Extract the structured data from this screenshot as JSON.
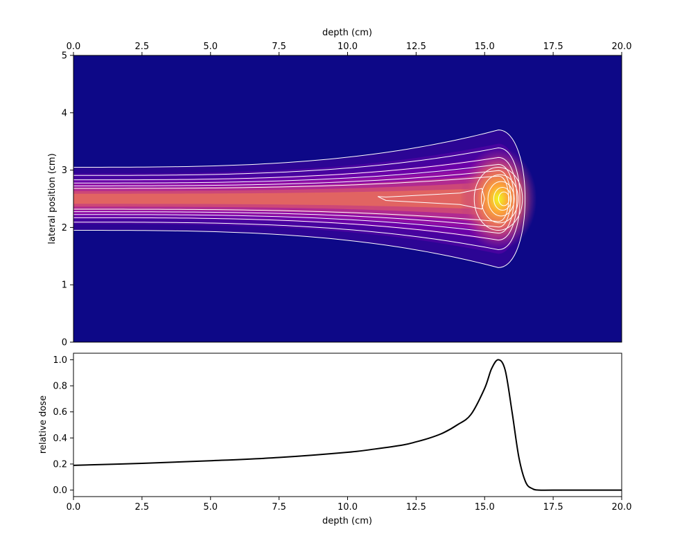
{
  "chart_data": [
    {
      "type": "heatmap",
      "subtype": "filled-contour",
      "colormap": "plasma",
      "contour_line_color": "#ffffff",
      "xlabel": "depth (cm)",
      "x_axis_position": "top",
      "ylabel": "lateral position (cm)",
      "xlim": [
        0,
        20
      ],
      "ylim": [
        0,
        5
      ],
      "xticks": [
        "0.0",
        "2.5",
        "5.0",
        "7.5",
        "10.0",
        "12.5",
        "15.0",
        "17.5",
        "20.0"
      ],
      "yticks": [
        "0",
        "1",
        "2",
        "3",
        "4",
        "5"
      ],
      "beam_center_y": 2.5,
      "peak_depth": 15.5,
      "peak_lateral_extent": [
        1.3,
        3.7
      ],
      "entrance_lateral_extent": [
        1.95,
        3.05
      ],
      "contour_levels": [
        0.05,
        0.2,
        0.3,
        0.4,
        0.5,
        0.6,
        0.7,
        0.8,
        0.9
      ],
      "grid": false
    },
    {
      "type": "line",
      "xlabel": "depth (cm)",
      "ylabel": "relative dose",
      "xlim": [
        0,
        20
      ],
      "ylim": [
        -0.05,
        1.05
      ],
      "xticks": [
        "0.0",
        "2.5",
        "5.0",
        "7.5",
        "10.0",
        "12.5",
        "15.0",
        "17.5",
        "20.0"
      ],
      "yticks": [
        "0.0",
        "0.2",
        "0.4",
        "0.6",
        "0.8",
        "1.0"
      ],
      "line_color": "#000000",
      "grid": false,
      "series": [
        {
          "x": [
            0,
            2.5,
            5,
            7.5,
            10,
            11,
            12,
            12.5,
            13,
            13.5,
            14,
            14.5,
            15,
            15.25,
            15.5,
            15.75,
            16,
            16.25,
            16.5,
            16.75,
            17,
            17.5,
            20
          ],
          "y": [
            0.19,
            0.205,
            0.225,
            0.25,
            0.29,
            0.315,
            0.345,
            0.37,
            0.4,
            0.44,
            0.5,
            0.58,
            0.78,
            0.93,
            1.0,
            0.92,
            0.6,
            0.25,
            0.06,
            0.01,
            0.0,
            0.0,
            0.0
          ]
        }
      ]
    }
  ]
}
